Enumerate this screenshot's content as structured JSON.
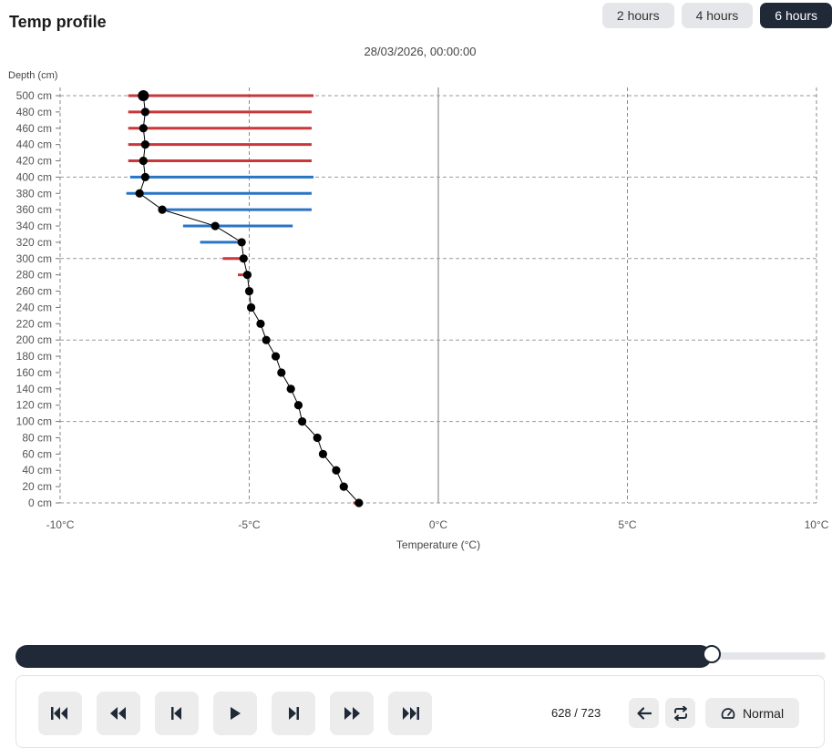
{
  "header": {
    "title": "Temp profile"
  },
  "range_buttons": [
    {
      "label": "2 hours",
      "active": false
    },
    {
      "label": "4 hours",
      "active": false
    },
    {
      "label": "6 hours",
      "active": true
    }
  ],
  "timestamp": "28/03/2026, 00:00:00",
  "chart_data": {
    "type": "line",
    "ylabel": "Depth (cm)",
    "xlabel": "Temperature (°C)",
    "xlim": [
      -10,
      10
    ],
    "ylim": [
      0,
      500
    ],
    "xticks": [
      "-10°C",
      "-5°C",
      "0°C",
      "5°C",
      "10°C"
    ],
    "yticks": [
      "0 cm",
      "20 cm",
      "40 cm",
      "60 cm",
      "80 cm",
      "100 cm",
      "120 cm",
      "140 cm",
      "160 cm",
      "180 cm",
      "200 cm",
      "220 cm",
      "240 cm",
      "260 cm",
      "280 cm",
      "300 cm",
      "320 cm",
      "340 cm",
      "360 cm",
      "380 cm",
      "400 cm",
      "420 cm",
      "440 cm",
      "460 cm",
      "480 cm",
      "500 cm"
    ],
    "grid": {
      "vertical": true,
      "horizontal_every_cm": 100
    },
    "colors": {
      "warming": "#c8373a",
      "cooling": "#2a74c5",
      "profile": "#000000"
    },
    "profile": [
      {
        "depth": 500,
        "temp": -7.8
      },
      {
        "depth": 480,
        "temp": -7.75
      },
      {
        "depth": 460,
        "temp": -7.8
      },
      {
        "depth": 440,
        "temp": -7.75
      },
      {
        "depth": 420,
        "temp": -7.8
      },
      {
        "depth": 400,
        "temp": -7.75
      },
      {
        "depth": 380,
        "temp": -7.9
      },
      {
        "depth": 360,
        "temp": -7.3
      },
      {
        "depth": 340,
        "temp": -5.9
      },
      {
        "depth": 320,
        "temp": -5.2
      },
      {
        "depth": 300,
        "temp": -5.15
      },
      {
        "depth": 280,
        "temp": -5.05
      },
      {
        "depth": 260,
        "temp": -5.0
      },
      {
        "depth": 240,
        "temp": -4.95
      },
      {
        "depth": 220,
        "temp": -4.7
      },
      {
        "depth": 200,
        "temp": -4.55
      },
      {
        "depth": 180,
        "temp": -4.3
      },
      {
        "depth": 160,
        "temp": -4.15
      },
      {
        "depth": 140,
        "temp": -3.9
      },
      {
        "depth": 120,
        "temp": -3.7
      },
      {
        "depth": 100,
        "temp": -3.6
      },
      {
        "depth": 80,
        "temp": -3.2
      },
      {
        "depth": 60,
        "temp": -3.05
      },
      {
        "depth": 40,
        "temp": -2.7
      },
      {
        "depth": 20,
        "temp": -2.5
      },
      {
        "depth": 0,
        "temp": -2.1
      }
    ],
    "ranges": [
      {
        "depth": 500,
        "min": -8.2,
        "max": -3.3,
        "kind": "warming"
      },
      {
        "depth": 480,
        "min": -8.2,
        "max": -3.35,
        "kind": "warming"
      },
      {
        "depth": 460,
        "min": -8.2,
        "max": -3.35,
        "kind": "warming"
      },
      {
        "depth": 440,
        "min": -8.2,
        "max": -3.35,
        "kind": "warming"
      },
      {
        "depth": 420,
        "min": -8.2,
        "max": -3.35,
        "kind": "warming"
      },
      {
        "depth": 400,
        "min": -8.15,
        "max": -3.3,
        "kind": "cooling"
      },
      {
        "depth": 380,
        "min": -8.25,
        "max": -3.35,
        "kind": "cooling"
      },
      {
        "depth": 360,
        "min": -7.35,
        "max": -3.35,
        "kind": "cooling"
      },
      {
        "depth": 340,
        "min": -6.75,
        "max": -3.85,
        "kind": "cooling"
      },
      {
        "depth": 320,
        "min": -6.3,
        "max": -5.1,
        "kind": "cooling"
      },
      {
        "depth": 300,
        "min": -5.7,
        "max": -5.15,
        "kind": "warming"
      },
      {
        "depth": 280,
        "min": -5.3,
        "max": -5.05,
        "kind": "warming"
      },
      {
        "depth": 0,
        "min": -2.25,
        "max": -2.1,
        "kind": "warming"
      }
    ]
  },
  "player": {
    "progress": 0.8686,
    "counter": "628 / 723",
    "speed_label": "Normal",
    "buttons": [
      "skip-to-start",
      "rewind",
      "step-back",
      "play",
      "step-forward",
      "fast-forward",
      "skip-to-end"
    ]
  }
}
